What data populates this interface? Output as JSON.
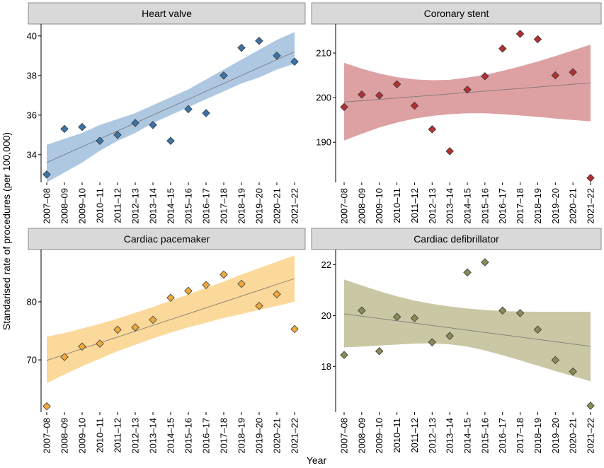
{
  "ylabel": "Standarised rate of procedures (per 100,000)",
  "xlabel": "Year",
  "chart_data": [
    {
      "type": "scatter",
      "title": "Heart valve",
      "color": "#3b74a8",
      "band_color": "#a6c2de",
      "categories": [
        "2007–08",
        "2008–09",
        "2009–10",
        "2010–11",
        "2011–12",
        "2012–13",
        "2013–14",
        "2014–15",
        "2015–16",
        "2016–17",
        "2017–18",
        "2018–19",
        "2019–20",
        "2020–21",
        "2021–22"
      ],
      "values": [
        33.0,
        35.3,
        35.4,
        34.7,
        35.0,
        35.6,
        35.5,
        34.7,
        36.3,
        36.1,
        38.0,
        39.4,
        39.75,
        39.0,
        38.7
      ],
      "fit": {
        "start": 33.6,
        "end": 39.2
      },
      "band": {
        "lower": [
          32.6,
          33.1,
          33.6,
          34.2,
          34.7,
          35.1,
          35.6,
          36.0,
          36.4,
          36.8,
          37.2,
          37.6,
          37.9,
          38.3,
          38.6
        ],
        "upper": [
          34.5,
          34.8,
          35.1,
          35.5,
          35.8,
          36.1,
          36.5,
          36.9,
          37.3,
          37.8,
          38.3,
          38.8,
          39.3,
          39.8,
          40.2
        ]
      },
      "yticks": [
        34,
        36,
        38,
        40
      ],
      "ylim": [
        32.6,
        40.6
      ]
    },
    {
      "type": "scatter",
      "title": "Coronary stent",
      "color": "#b13034",
      "band_color": "#d9979a",
      "categories": [
        "2007–08",
        "2008–09",
        "2009–10",
        "2010–11",
        "2011–12",
        "2012–13",
        "2013–14",
        "2014–15",
        "2015–16",
        "2016–17",
        "2017–18",
        "2018–19",
        "2019–20",
        "2020–21",
        "2021–22"
      ],
      "values": [
        197.9,
        200.7,
        200.5,
        203.0,
        198.2,
        192.9,
        188.0,
        201.8,
        204.8,
        211.0,
        214.3,
        213.1,
        205.0,
        205.7,
        182.0
      ],
      "fit": {
        "start": 199.0,
        "end": 203.3
      },
      "band": {
        "lower": [
          190.4,
          191.9,
          193.3,
          194.4,
          195.3,
          195.9,
          196.3,
          196.5,
          196.5,
          196.3,
          196.0,
          195.7,
          195.3,
          195.0,
          194.7
        ],
        "upper": [
          207.8,
          206.5,
          205.4,
          204.6,
          204.1,
          203.9,
          204.0,
          204.5,
          205.1,
          206.0,
          207.0,
          208.1,
          209.3,
          210.6,
          211.9
        ]
      },
      "yticks": [
        190,
        200,
        210
      ],
      "ylim": [
        181.0,
        216.5
      ]
    },
    {
      "type": "scatter",
      "title": "Cardiac pacemaker",
      "color": "#f2a93b",
      "band_color": "#fbd58f",
      "categories": [
        "2007–08",
        "2008–09",
        "2009–10",
        "2010–11",
        "2011–12",
        "2012–13",
        "2013–14",
        "2014–15",
        "2015–16",
        "2016–17",
        "2017–18",
        "2018–19",
        "2019–20",
        "2020–21",
        "2021–22"
      ],
      "values": [
        62.0,
        70.5,
        72.3,
        72.8,
        75.2,
        75.6,
        76.9,
        80.7,
        81.9,
        82.9,
        84.7,
        83.1,
        79.3,
        81.3,
        75.3
      ],
      "fit": {
        "start": 69.9,
        "end": 84.0
      },
      "band": {
        "lower": [
          66.0,
          67.5,
          68.9,
          70.2,
          71.5,
          72.6,
          73.7,
          74.7,
          75.6,
          76.4,
          77.2,
          77.9,
          78.6,
          79.3,
          80.0
        ],
        "upper": [
          74.0,
          74.6,
          75.4,
          76.2,
          77.1,
          78.1,
          79.1,
          80.2,
          81.3,
          82.4,
          83.5,
          84.7,
          85.8,
          86.9,
          88.0
        ]
      },
      "yticks": [
        70,
        80
      ],
      "ylim": [
        61.0,
        89.0
      ]
    },
    {
      "type": "scatter",
      "title": "Cardiac defibrillator",
      "color": "#8a8a57",
      "band_color": "#c4c19b",
      "categories": [
        "2007–08",
        "2008–09",
        "2009–10",
        "2010–11",
        "2011–12",
        "2012–13",
        "2013–14",
        "2014–15",
        "2015–16",
        "2016–17",
        "2017–18",
        "2018–19",
        "2019–20",
        "2020–21",
        "2021–22"
      ],
      "values": [
        18.45,
        20.2,
        18.6,
        19.95,
        19.9,
        18.95,
        19.2,
        21.7,
        22.1,
        20.2,
        20.1,
        19.45,
        18.25,
        17.8,
        16.45
      ],
      "fit": {
        "start": 20.07,
        "end": 18.79
      },
      "band": {
        "lower": [
          18.75,
          18.78,
          18.82,
          18.86,
          18.9,
          18.91,
          18.87,
          18.78,
          18.63,
          18.44,
          18.24,
          18.03,
          17.82,
          17.62,
          17.42
        ],
        "upper": [
          21.42,
          21.19,
          20.96,
          20.76,
          20.59,
          20.46,
          20.36,
          20.28,
          20.22,
          20.18,
          20.16,
          20.15,
          20.15,
          20.15,
          20.15
        ]
      },
      "yticks": [
        18,
        20,
        22
      ],
      "ylim": [
        16.2,
        22.6
      ]
    }
  ]
}
